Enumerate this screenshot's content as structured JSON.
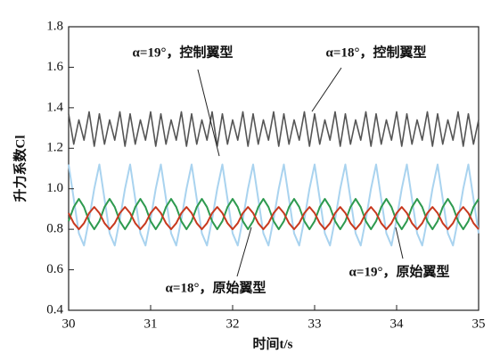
{
  "chart_data": {
    "type": "line",
    "x_label": "时间t/s",
    "y_label": "升力系数Cl",
    "x": [
      30,
      30.0625,
      30.125,
      30.1875,
      30.25,
      30.3125,
      30.375,
      30.4375,
      30.5,
      30.5625,
      30.625,
      30.6875,
      30.75,
      30.8125,
      30.875,
      30.9375,
      31,
      31.0625,
      31.125,
      31.1875,
      31.25,
      31.3125,
      31.375,
      31.4375,
      31.5,
      31.5625,
      31.625,
      31.6875,
      31.75,
      31.8125,
      31.875,
      31.9375,
      32,
      32.0625,
      32.125,
      32.1875,
      32.25,
      32.3125,
      32.375,
      32.4375,
      32.5,
      32.5625,
      32.625,
      32.6875,
      32.75,
      32.8125,
      32.875,
      32.9375,
      33,
      33.0625,
      33.125,
      33.1875,
      33.25,
      33.3125,
      33.375,
      33.4375,
      33.5,
      33.5625,
      33.625,
      33.6875,
      33.75,
      33.8125,
      33.875,
      33.9375,
      34,
      34.0625,
      34.125,
      34.1875,
      34.25,
      34.3125,
      34.375,
      34.4375,
      34.5,
      34.5625,
      34.625,
      34.6875,
      34.75,
      34.8125,
      34.875,
      34.9375,
      35
    ],
    "series": [
      {
        "name": "α=19°，控制翼型",
        "color": "#a9d3ef",
        "values": [
          1.12,
          0.95,
          0.78,
          0.72,
          0.85,
          1.0,
          1.12,
          0.95,
          0.78,
          0.72,
          0.85,
          1.0,
          1.12,
          0.95,
          0.78,
          0.72,
          0.85,
          1.0,
          1.12,
          0.95,
          0.78,
          0.72,
          0.85,
          1.0,
          1.12,
          0.95,
          0.78,
          0.72,
          0.85,
          1.0,
          1.12,
          0.95,
          0.78,
          0.72,
          0.85,
          1.0,
          1.12,
          0.95,
          0.78,
          0.72,
          0.85,
          1.0,
          1.12,
          0.95,
          0.78,
          0.72,
          0.85,
          1.0,
          1.12,
          0.95,
          0.78,
          0.72,
          0.85,
          1.0,
          1.12,
          0.95,
          0.78,
          0.72,
          0.85,
          1.0,
          1.12,
          0.95,
          0.78,
          0.72,
          0.85,
          1.0,
          1.12,
          0.95,
          0.78,
          0.72,
          0.85,
          1.0,
          1.12,
          0.95,
          0.78,
          0.72,
          0.85,
          1.0,
          1.12,
          0.95,
          0.78
        ]
      },
      {
        "name": "α=18°，控制翼型",
        "color": "#555555",
        "values": [
          1.37,
          1.22,
          1.34,
          1.24,
          1.38,
          1.21,
          1.37,
          1.22,
          1.34,
          1.24,
          1.38,
          1.21,
          1.37,
          1.22,
          1.34,
          1.24,
          1.38,
          1.21,
          1.37,
          1.22,
          1.34,
          1.24,
          1.38,
          1.21,
          1.37,
          1.22,
          1.34,
          1.24,
          1.38,
          1.21,
          1.37,
          1.22,
          1.34,
          1.24,
          1.38,
          1.21,
          1.37,
          1.22,
          1.34,
          1.24,
          1.38,
          1.21,
          1.37,
          1.22,
          1.34,
          1.24,
          1.38,
          1.21,
          1.37,
          1.22,
          1.34,
          1.24,
          1.38,
          1.21,
          1.37,
          1.22,
          1.34,
          1.24,
          1.38,
          1.21,
          1.37,
          1.22,
          1.34,
          1.24,
          1.38,
          1.21,
          1.37,
          1.22,
          1.34,
          1.24,
          1.38,
          1.21,
          1.37,
          1.22,
          1.34,
          1.24,
          1.38,
          1.21,
          1.37,
          1.22,
          1.34
        ]
      },
      {
        "name": "α=18°，原始翼型",
        "color": "#2e9a4f",
        "values": [
          0.84,
          0.91,
          0.95,
          0.91,
          0.84,
          0.8,
          0.84,
          0.91,
          0.95,
          0.91,
          0.84,
          0.8,
          0.84,
          0.91,
          0.95,
          0.91,
          0.84,
          0.8,
          0.84,
          0.91,
          0.95,
          0.91,
          0.84,
          0.8,
          0.84,
          0.91,
          0.95,
          0.91,
          0.84,
          0.8,
          0.84,
          0.91,
          0.95,
          0.91,
          0.84,
          0.8,
          0.84,
          0.91,
          0.95,
          0.91,
          0.84,
          0.8,
          0.84,
          0.91,
          0.95,
          0.91,
          0.84,
          0.8,
          0.84,
          0.91,
          0.95,
          0.91,
          0.84,
          0.8,
          0.84,
          0.91,
          0.95,
          0.91,
          0.84,
          0.8,
          0.84,
          0.91,
          0.95,
          0.91,
          0.84,
          0.8,
          0.84,
          0.91,
          0.95,
          0.91,
          0.84,
          0.8,
          0.84,
          0.91,
          0.95,
          0.91,
          0.84,
          0.8,
          0.84,
          0.91,
          0.95
        ]
      },
      {
        "name": "α=19°，原始翼型",
        "color": "#c8391f",
        "values": [
          0.88,
          0.83,
          0.8,
          0.83,
          0.88,
          0.91,
          0.88,
          0.83,
          0.8,
          0.83,
          0.88,
          0.91,
          0.88,
          0.83,
          0.8,
          0.83,
          0.88,
          0.91,
          0.88,
          0.83,
          0.8,
          0.83,
          0.88,
          0.91,
          0.88,
          0.83,
          0.8,
          0.83,
          0.88,
          0.91,
          0.88,
          0.83,
          0.8,
          0.83,
          0.88,
          0.91,
          0.88,
          0.83,
          0.8,
          0.83,
          0.88,
          0.91,
          0.88,
          0.83,
          0.8,
          0.83,
          0.88,
          0.91,
          0.88,
          0.83,
          0.8,
          0.83,
          0.88,
          0.91,
          0.88,
          0.83,
          0.8,
          0.83,
          0.88,
          0.91,
          0.88,
          0.83,
          0.8,
          0.83,
          0.88,
          0.91,
          0.88,
          0.83,
          0.8,
          0.83,
          0.88,
          0.91,
          0.88,
          0.83,
          0.8,
          0.83,
          0.88,
          0.91,
          0.88,
          0.83,
          0.8
        ]
      }
    ],
    "xlim": [
      30,
      35
    ],
    "xticks": [
      30,
      31,
      32,
      33,
      34,
      35
    ],
    "ylim": [
      0.4,
      1.8
    ],
    "yticks": [
      0.4,
      0.6,
      0.8,
      {
        "value": 1,
        "label": "1.0"
      },
      1.2,
      1.4,
      1.6,
      1.8
    ]
  }
}
